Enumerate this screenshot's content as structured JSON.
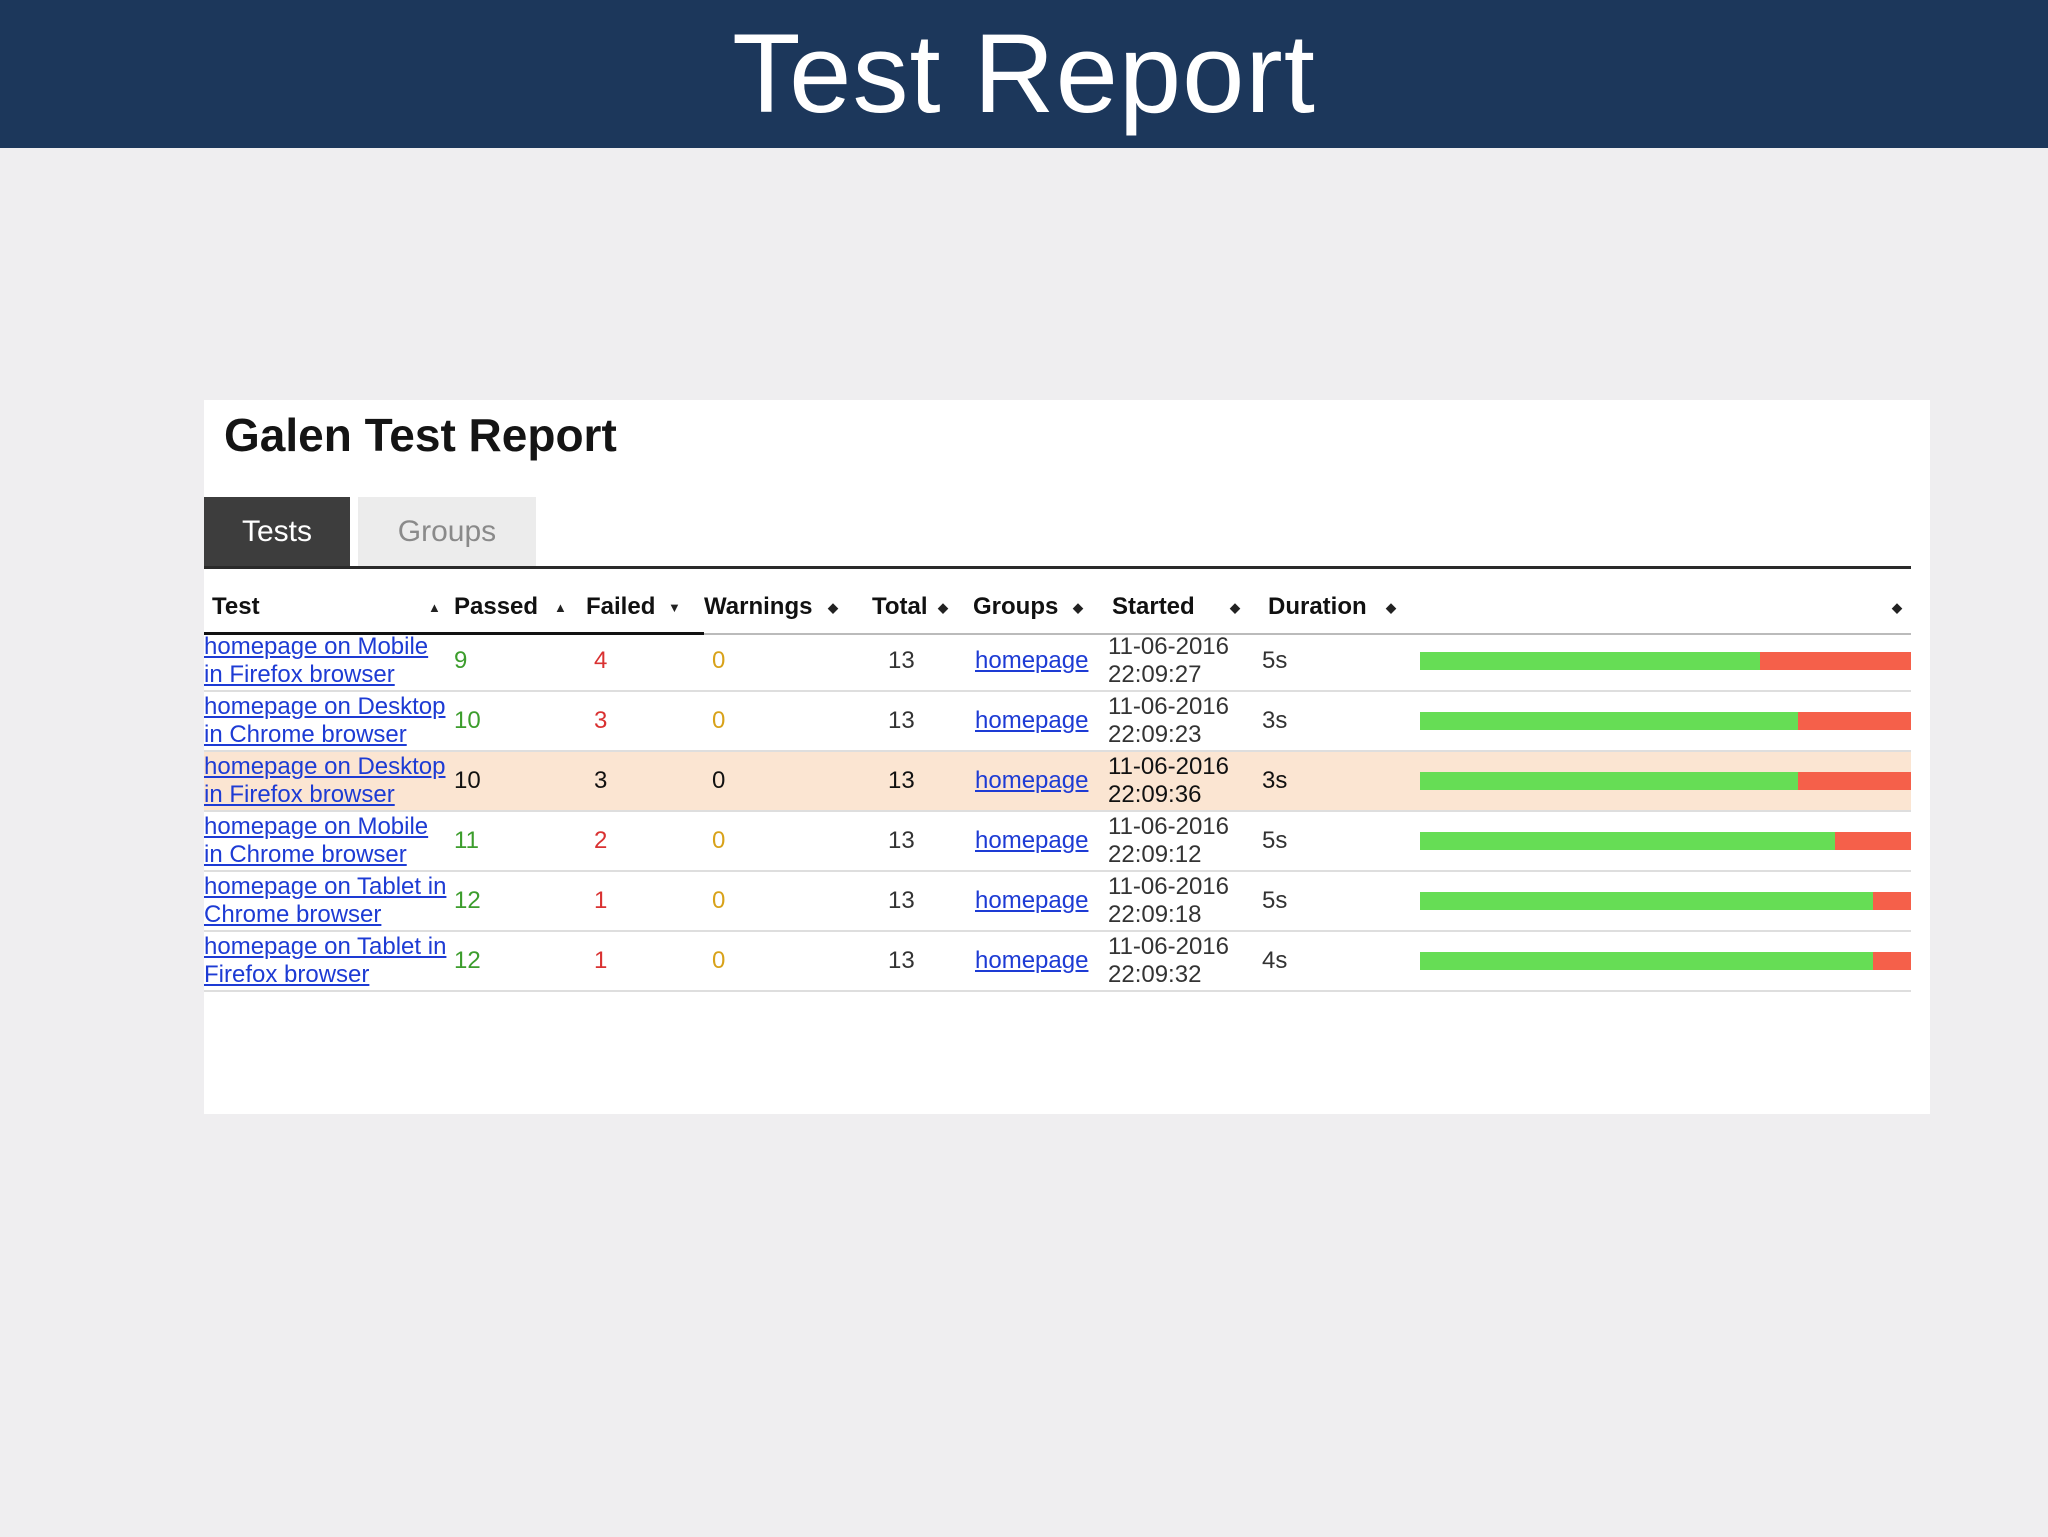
{
  "slide": {
    "title": "Test Report"
  },
  "report": {
    "title": "Galen Test Report",
    "tabs": [
      {
        "label": "Tests",
        "active": true
      },
      {
        "label": "Groups",
        "active": false
      }
    ],
    "columns": {
      "test": "Test",
      "passed": "Passed",
      "failed": "Failed",
      "warnings": "Warnings",
      "total": "Total",
      "groups": "Groups",
      "started": "Started",
      "duration": "Duration"
    },
    "sort_icons": {
      "asc": "▲",
      "desc": "▼",
      "both": "◆"
    },
    "colors": {
      "passed": "#3c9d2c",
      "failed": "#d93131",
      "warnings": "#d8a21a",
      "link": "#1d3bd4",
      "bar_pass": "#66dd55",
      "bar_fail": "#f5604a",
      "highlight_row": "#fbe5d2",
      "banner": "#1c375b"
    },
    "rows": [
      {
        "test_line1": "homepage on Mobile",
        "test_line2": "in Firefox browser",
        "passed": "9",
        "failed": "4",
        "warnings": "0",
        "total": "13",
        "group": "homepage",
        "started_date": "11-06-2016",
        "started_time": "22:09:27",
        "duration": "5s",
        "highlight": false
      },
      {
        "test_line1": "homepage on Desktop",
        "test_line2": "in Chrome browser",
        "passed": "10",
        "failed": "3",
        "warnings": "0",
        "total": "13",
        "group": "homepage",
        "started_date": "11-06-2016",
        "started_time": "22:09:23",
        "duration": "3s",
        "highlight": false
      },
      {
        "test_line1": "homepage on Desktop",
        "test_line2": "in Firefox browser",
        "passed": "10",
        "failed": "3",
        "warnings": "0",
        "total": "13",
        "group": "homepage",
        "started_date": "11-06-2016",
        "started_time": "22:09:36",
        "duration": "3s",
        "highlight": true
      },
      {
        "test_line1": "homepage on Mobile",
        "test_line2": "in Chrome browser",
        "passed": "11",
        "failed": "2",
        "warnings": "0",
        "total": "13",
        "group": "homepage",
        "started_date": "11-06-2016",
        "started_time": "22:09:12",
        "duration": "5s",
        "highlight": false
      },
      {
        "test_line1": "homepage on Tablet in",
        "test_line2": "Chrome browser",
        "passed": "12",
        "failed": "1",
        "warnings": "0",
        "total": "13",
        "group": "homepage",
        "started_date": "11-06-2016",
        "started_time": "22:09:18",
        "duration": "5s",
        "highlight": false
      },
      {
        "test_line1": "homepage on Tablet in",
        "test_line2": "Firefox browser",
        "passed": "12",
        "failed": "1",
        "warnings": "0",
        "total": "13",
        "group": "homepage",
        "started_date": "11-06-2016",
        "started_time": "22:09:32",
        "duration": "4s",
        "highlight": false
      }
    ]
  }
}
